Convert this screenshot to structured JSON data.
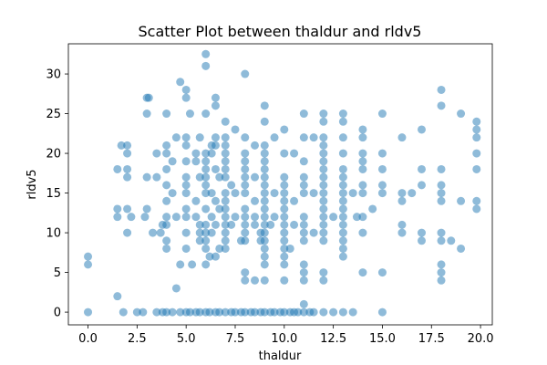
{
  "chart_data": {
    "type": "scatter",
    "title": "Scatter Plot between thaldur and rldv5",
    "xlabel": "thaldur",
    "ylabel": "rldv5",
    "xlim": [
      -1,
      20.6
    ],
    "ylim": [
      -1.6,
      33.8
    ],
    "xticks": [
      0.0,
      2.5,
      5.0,
      7.5,
      10.0,
      12.5,
      15.0,
      17.5,
      20.0
    ],
    "xtick_labels": [
      "0.0",
      "2.5",
      "5.0",
      "7.5",
      "10.0",
      "12.5",
      "15.0",
      "17.5",
      "20.0"
    ],
    "yticks": [
      0,
      5,
      10,
      15,
      20,
      25,
      30
    ],
    "ytick_labels": [
      "0",
      "5",
      "10",
      "15",
      "20",
      "25",
      "30"
    ],
    "grid": false,
    "marker_color": "#1f77b4",
    "marker_alpha": 0.5,
    "series": [
      {
        "name": "",
        "points": [
          [
            0.0,
            0
          ],
          [
            0.0,
            6
          ],
          [
            0.0,
            7
          ],
          [
            1.5,
            2
          ],
          [
            1.5,
            12
          ],
          [
            1.5,
            13
          ],
          [
            1.5,
            18
          ],
          [
            1.7,
            21
          ],
          [
            1.8,
            0
          ],
          [
            2.0,
            10
          ],
          [
            2.0,
            13
          ],
          [
            2.0,
            17
          ],
          [
            2.0,
            18
          ],
          [
            2.0,
            20
          ],
          [
            2.0,
            21
          ],
          [
            2.2,
            12
          ],
          [
            2.5,
            0
          ],
          [
            2.8,
            0
          ],
          [
            2.9,
            12
          ],
          [
            3.0,
            13
          ],
          [
            3.0,
            17
          ],
          [
            3.0,
            25
          ],
          [
            3.0,
            27
          ],
          [
            3.1,
            27
          ],
          [
            3.3,
            10
          ],
          [
            3.5,
            0
          ],
          [
            3.5,
            17
          ],
          [
            3.5,
            20
          ],
          [
            3.7,
            10
          ],
          [
            3.8,
            0
          ],
          [
            3.8,
            11
          ],
          [
            4.0,
            0
          ],
          [
            4.0,
            8
          ],
          [
            4.0,
            9
          ],
          [
            4.0,
            11
          ],
          [
            4.0,
            12
          ],
          [
            4.0,
            14
          ],
          [
            4.0,
            16
          ],
          [
            4.0,
            18
          ],
          [
            4.0,
            20
          ],
          [
            4.0,
            21
          ],
          [
            4.0,
            25
          ],
          [
            4.3,
            0
          ],
          [
            4.3,
            15
          ],
          [
            4.3,
            19
          ],
          [
            4.5,
            3
          ],
          [
            4.5,
            12
          ],
          [
            4.5,
            22
          ],
          [
            4.7,
            0
          ],
          [
            4.7,
            6
          ],
          [
            4.7,
            29
          ],
          [
            5.0,
            0
          ],
          [
            5.0,
            8
          ],
          [
            5.0,
            10
          ],
          [
            5.0,
            12
          ],
          [
            5.0,
            13
          ],
          [
            5.0,
            15
          ],
          [
            5.0,
            16
          ],
          [
            5.0,
            17
          ],
          [
            5.0,
            19
          ],
          [
            5.0,
            21
          ],
          [
            5.0,
            22
          ],
          [
            5.0,
            27
          ],
          [
            5.0,
            28
          ],
          [
            5.2,
            0
          ],
          [
            5.2,
            25
          ],
          [
            5.3,
            6
          ],
          [
            5.5,
            0
          ],
          [
            5.5,
            12
          ],
          [
            5.5,
            14
          ],
          [
            5.5,
            19
          ],
          [
            5.5,
            20
          ],
          [
            5.7,
            0
          ],
          [
            5.7,
            9
          ],
          [
            5.7,
            10
          ],
          [
            5.7,
            11
          ],
          [
            5.7,
            17
          ],
          [
            5.7,
            22
          ],
          [
            6.0,
            0
          ],
          [
            6.0,
            6
          ],
          [
            6.0,
            8
          ],
          [
            6.0,
            9
          ],
          [
            6.0,
            10
          ],
          [
            6.0,
            11
          ],
          [
            6.0,
            13
          ],
          [
            6.0,
            15
          ],
          [
            6.0,
            16
          ],
          [
            6.0,
            17
          ],
          [
            6.0,
            18
          ],
          [
            6.0,
            19
          ],
          [
            6.0,
            20
          ],
          [
            6.0,
            25
          ],
          [
            6.0,
            31
          ],
          [
            6.0,
            32.5
          ],
          [
            6.2,
            0
          ],
          [
            6.2,
            7
          ],
          [
            6.3,
            10
          ],
          [
            6.3,
            12
          ],
          [
            6.3,
            15
          ],
          [
            6.3,
            20
          ],
          [
            6.3,
            21
          ],
          [
            6.5,
            0
          ],
          [
            6.5,
            7
          ],
          [
            6.5,
            11
          ],
          [
            6.5,
            14
          ],
          [
            6.5,
            18
          ],
          [
            6.5,
            21
          ],
          [
            6.5,
            22
          ],
          [
            6.5,
            26
          ],
          [
            6.5,
            27
          ],
          [
            6.7,
            0
          ],
          [
            6.7,
            8
          ],
          [
            6.7,
            13
          ],
          [
            6.7,
            17
          ],
          [
            7.0,
            0
          ],
          [
            7.0,
            8
          ],
          [
            7.0,
            9
          ],
          [
            7.0,
            10
          ],
          [
            7.0,
            11
          ],
          [
            7.0,
            12
          ],
          [
            7.0,
            13
          ],
          [
            7.0,
            14
          ],
          [
            7.0,
            15
          ],
          [
            7.0,
            17
          ],
          [
            7.0,
            18
          ],
          [
            7.0,
            19
          ],
          [
            7.0,
            20
          ],
          [
            7.0,
            21
          ],
          [
            7.0,
            22
          ],
          [
            7.0,
            24
          ],
          [
            7.3,
            0
          ],
          [
            7.3,
            11
          ],
          [
            7.3,
            16
          ],
          [
            7.5,
            0
          ],
          [
            7.5,
            12
          ],
          [
            7.5,
            15
          ],
          [
            7.5,
            23
          ],
          [
            7.8,
            0
          ],
          [
            7.8,
            9
          ],
          [
            8.0,
            0
          ],
          [
            8.0,
            4
          ],
          [
            8.0,
            5
          ],
          [
            8.0,
            9
          ],
          [
            8.0,
            10
          ],
          [
            8.0,
            11
          ],
          [
            8.0,
            12
          ],
          [
            8.0,
            13
          ],
          [
            8.0,
            15
          ],
          [
            8.0,
            16
          ],
          [
            8.0,
            17
          ],
          [
            8.0,
            18
          ],
          [
            8.0,
            19
          ],
          [
            8.0,
            20
          ],
          [
            8.0,
            22
          ],
          [
            8.0,
            30
          ],
          [
            8.3,
            0
          ],
          [
            8.5,
            0
          ],
          [
            8.5,
            4
          ],
          [
            8.5,
            11
          ],
          [
            8.5,
            12
          ],
          [
            8.5,
            14
          ],
          [
            8.5,
            17
          ],
          [
            8.5,
            21
          ],
          [
            8.8,
            0
          ],
          [
            8.8,
            9
          ],
          [
            8.8,
            10
          ],
          [
            9.0,
            0
          ],
          [
            9.0,
            4
          ],
          [
            9.0,
            6
          ],
          [
            9.0,
            7
          ],
          [
            9.0,
            8
          ],
          [
            9.0,
            9
          ],
          [
            9.0,
            10
          ],
          [
            9.0,
            11
          ],
          [
            9.0,
            12
          ],
          [
            9.0,
            13
          ],
          [
            9.0,
            14
          ],
          [
            9.0,
            15
          ],
          [
            9.0,
            16
          ],
          [
            9.0,
            17
          ],
          [
            9.0,
            18
          ],
          [
            9.0,
            19
          ],
          [
            9.0,
            20
          ],
          [
            9.0,
            21
          ],
          [
            9.0,
            24
          ],
          [
            9.0,
            26
          ],
          [
            9.3,
            0
          ],
          [
            9.3,
            11
          ],
          [
            9.5,
            0
          ],
          [
            9.5,
            12
          ],
          [
            9.5,
            15
          ],
          [
            9.5,
            22
          ],
          [
            9.8,
            0
          ],
          [
            10.0,
            0
          ],
          [
            10.0,
            4
          ],
          [
            10.0,
            6
          ],
          [
            10.0,
            7
          ],
          [
            10.0,
            8
          ],
          [
            10.0,
            9
          ],
          [
            10.0,
            10
          ],
          [
            10.0,
            11
          ],
          [
            10.0,
            12
          ],
          [
            10.0,
            13
          ],
          [
            10.0,
            14
          ],
          [
            10.0,
            15
          ],
          [
            10.0,
            16
          ],
          [
            10.0,
            17
          ],
          [
            10.0,
            20
          ],
          [
            10.0,
            23
          ],
          [
            10.3,
            0
          ],
          [
            10.3,
            8
          ],
          [
            10.5,
            0
          ],
          [
            10.5,
            11
          ],
          [
            10.5,
            14
          ],
          [
            10.5,
            20
          ],
          [
            10.7,
            0
          ],
          [
            11.0,
            0
          ],
          [
            11.0,
            1
          ],
          [
            11.0,
            4
          ],
          [
            11.0,
            5
          ],
          [
            11.0,
            6
          ],
          [
            11.0,
            9
          ],
          [
            11.0,
            10
          ],
          [
            11.0,
            11
          ],
          [
            11.0,
            12
          ],
          [
            11.0,
            15
          ],
          [
            11.0,
            16
          ],
          [
            11.0,
            17
          ],
          [
            11.0,
            19
          ],
          [
            11.0,
            22
          ],
          [
            11.0,
            25
          ],
          [
            11.3,
            0
          ],
          [
            11.5,
            0
          ],
          [
            11.5,
            10
          ],
          [
            11.5,
            15
          ],
          [
            11.5,
            22
          ],
          [
            12.0,
            0
          ],
          [
            12.0,
            4
          ],
          [
            12.0,
            5
          ],
          [
            12.0,
            9
          ],
          [
            12.0,
            10
          ],
          [
            12.0,
            11
          ],
          [
            12.0,
            12
          ],
          [
            12.0,
            13
          ],
          [
            12.0,
            14
          ],
          [
            12.0,
            15
          ],
          [
            12.0,
            16
          ],
          [
            12.0,
            17
          ],
          [
            12.0,
            18
          ],
          [
            12.0,
            19
          ],
          [
            12.0,
            20
          ],
          [
            12.0,
            21
          ],
          [
            12.0,
            22
          ],
          [
            12.0,
            24
          ],
          [
            12.0,
            25
          ],
          [
            12.5,
            0
          ],
          [
            12.5,
            12
          ],
          [
            13.0,
            0
          ],
          [
            13.0,
            7
          ],
          [
            13.0,
            8
          ],
          [
            13.0,
            9
          ],
          [
            13.0,
            10
          ],
          [
            13.0,
            11
          ],
          [
            13.0,
            12
          ],
          [
            13.0,
            13
          ],
          [
            13.0,
            14
          ],
          [
            13.0,
            15
          ],
          [
            13.0,
            16
          ],
          [
            13.0,
            17
          ],
          [
            13.0,
            18
          ],
          [
            13.0,
            20
          ],
          [
            13.0,
            22
          ],
          [
            13.0,
            24
          ],
          [
            13.0,
            25
          ],
          [
            13.5,
            0
          ],
          [
            13.5,
            15
          ],
          [
            13.7,
            12
          ],
          [
            14.0,
            5
          ],
          [
            14.0,
            10
          ],
          [
            14.0,
            12
          ],
          [
            14.0,
            15
          ],
          [
            14.0,
            16
          ],
          [
            14.0,
            18
          ],
          [
            14.0,
            19
          ],
          [
            14.0,
            20
          ],
          [
            14.0,
            22
          ],
          [
            14.0,
            23
          ],
          [
            14.5,
            13
          ],
          [
            15.0,
            0
          ],
          [
            15.0,
            5
          ],
          [
            15.0,
            15
          ],
          [
            15.0,
            16
          ],
          [
            15.0,
            18
          ],
          [
            15.0,
            20
          ],
          [
            15.0,
            25
          ],
          [
            16.0,
            10
          ],
          [
            16.0,
            11
          ],
          [
            16.0,
            14
          ],
          [
            16.0,
            15
          ],
          [
            16.0,
            22
          ],
          [
            16.5,
            15
          ],
          [
            17.0,
            9
          ],
          [
            17.0,
            10
          ],
          [
            17.0,
            16
          ],
          [
            17.0,
            18
          ],
          [
            17.0,
            23
          ],
          [
            18.0,
            4
          ],
          [
            18.0,
            5
          ],
          [
            18.0,
            6
          ],
          [
            18.0,
            9
          ],
          [
            18.0,
            10
          ],
          [
            18.0,
            14
          ],
          [
            18.0,
            15
          ],
          [
            18.0,
            16
          ],
          [
            18.0,
            18
          ],
          [
            18.0,
            26
          ],
          [
            18.0,
            28
          ],
          [
            18.5,
            9
          ],
          [
            19.0,
            8
          ],
          [
            19.0,
            14
          ],
          [
            19.0,
            25
          ],
          [
            19.8,
            13
          ],
          [
            19.8,
            14
          ],
          [
            19.8,
            18
          ],
          [
            19.8,
            20
          ],
          [
            19.8,
            22
          ],
          [
            19.8,
            23
          ],
          [
            19.8,
            24
          ]
        ]
      }
    ]
  }
}
